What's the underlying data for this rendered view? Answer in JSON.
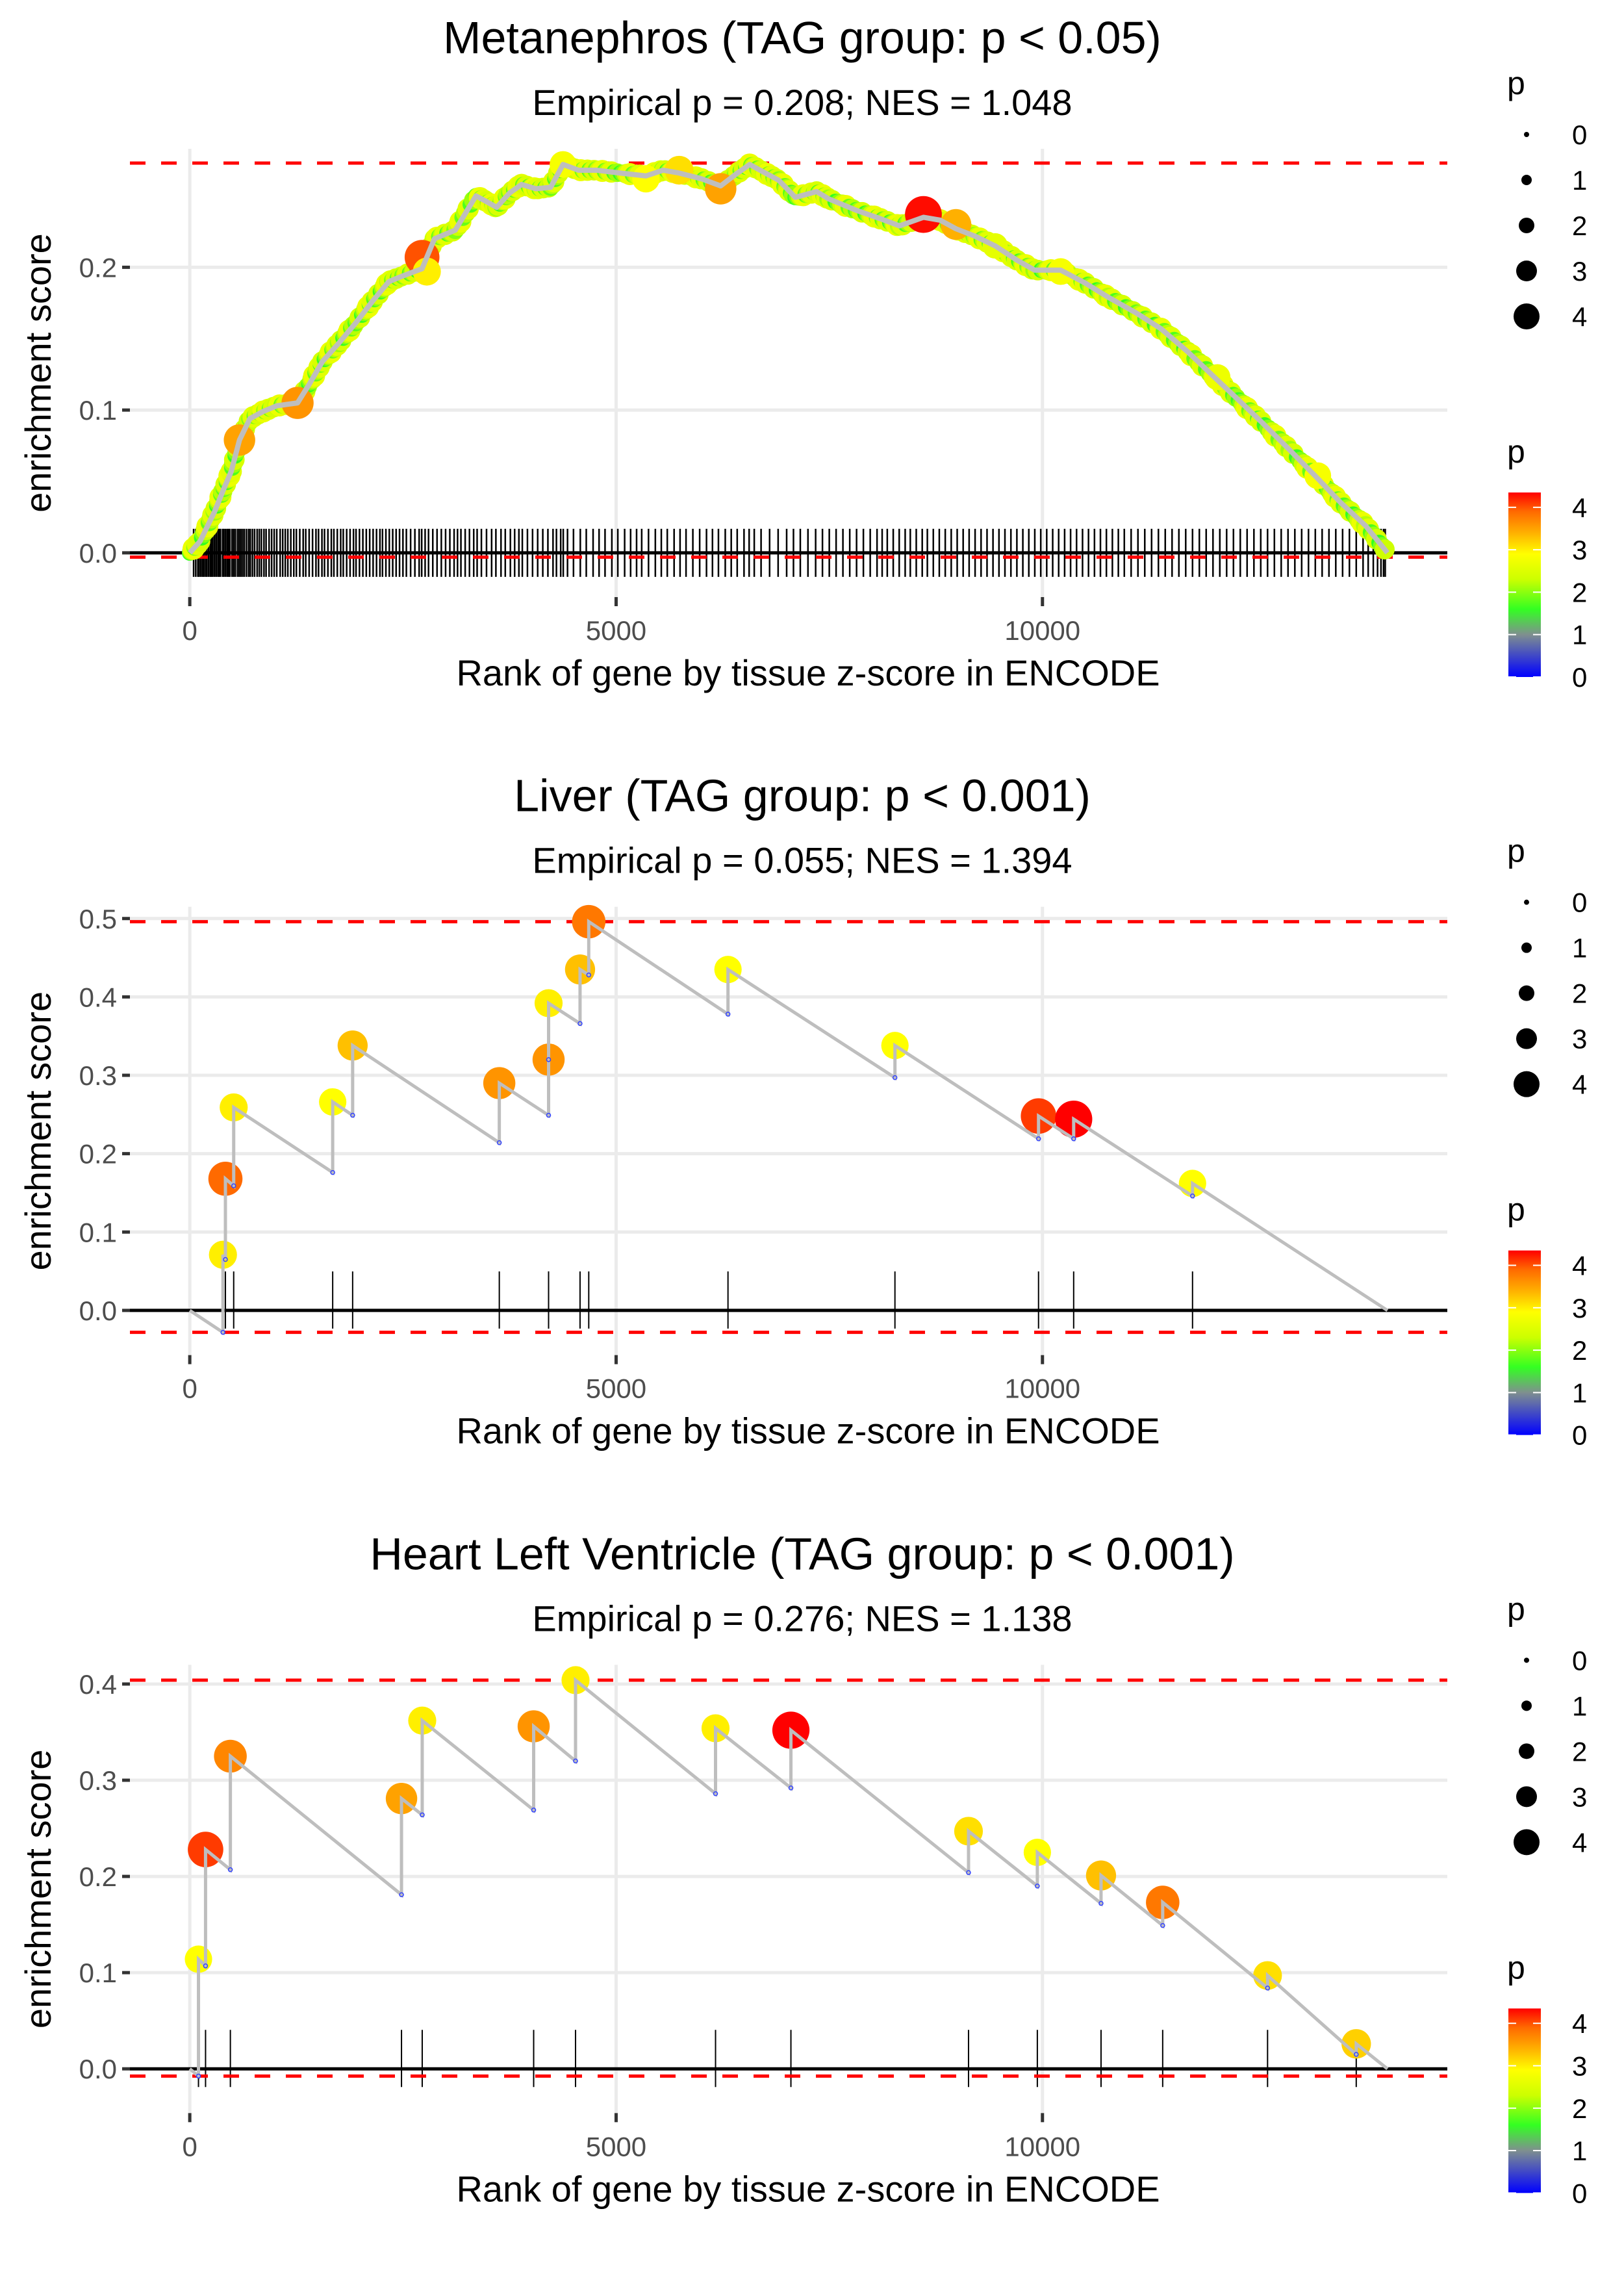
{
  "chart_data": [
    {
      "type": "line",
      "title": "Metanephros (TAG group: p < 0.05)",
      "subtitle": "Empirical p = 0.208; NES = 1.048",
      "xlabel": "Rank of gene by tissue z-score in ENCODE",
      "ylabel": "enrichment score",
      "xlim": [
        -702,
        14748
      ],
      "ylim": [
        -0.031,
        0.283
      ],
      "x_ticks": [
        0,
        5000,
        10000
      ],
      "x_tick_labels": [
        "0",
        "5000",
        "10000"
      ],
      "y_ticks": [
        0.0,
        0.1,
        0.2
      ],
      "y_tick_labels": [
        "0.0",
        "0.1",
        "0.2"
      ],
      "grid": true,
      "max_es_line": 0.273,
      "min_es_line": -0.003,
      "dense": true,
      "running_sum": [
        [
          0,
          0.0
        ],
        [
          120,
          0.008
        ],
        [
          292,
          0.029
        ],
        [
          400,
          0.045
        ],
        [
          486,
          0.057
        ],
        [
          583,
          0.079
        ],
        [
          705,
          0.094
        ],
        [
          860,
          0.099
        ],
        [
          1021,
          0.103
        ],
        [
          1264,
          0.105
        ],
        [
          1400,
          0.118
        ],
        [
          1556,
          0.134
        ],
        [
          1750,
          0.147
        ],
        [
          1946,
          0.161
        ],
        [
          2140,
          0.176
        ],
        [
          2335,
          0.19
        ],
        [
          2500,
          0.194
        ],
        [
          2724,
          0.199
        ],
        [
          2870,
          0.22
        ],
        [
          3113,
          0.226
        ],
        [
          3356,
          0.25
        ],
        [
          3480,
          0.246
        ],
        [
          3599,
          0.242
        ],
        [
          3750,
          0.252
        ],
        [
          3891,
          0.258
        ],
        [
          4060,
          0.255
        ],
        [
          4232,
          0.256
        ],
        [
          4377,
          0.272
        ],
        [
          4560,
          0.268
        ],
        [
          4767,
          0.268
        ],
        [
          5050,
          0.266
        ],
        [
          5350,
          0.264
        ],
        [
          5550,
          0.268
        ],
        [
          5739,
          0.266
        ],
        [
          6000,
          0.262
        ],
        [
          6226,
          0.257
        ],
        [
          6400,
          0.265
        ],
        [
          6566,
          0.272
        ],
        [
          6750,
          0.266
        ],
        [
          6907,
          0.261
        ],
        [
          7101,
          0.249
        ],
        [
          7352,
          0.253
        ],
        [
          7490,
          0.248
        ],
        [
          7813,
          0.24
        ],
        [
          8100,
          0.234
        ],
        [
          8323,
          0.229
        ],
        [
          8604,
          0.235
        ],
        [
          8800,
          0.233
        ],
        [
          8985,
          0.227
        ],
        [
          9200,
          0.222
        ],
        [
          9445,
          0.215
        ],
        [
          9700,
          0.205
        ],
        [
          9908,
          0.198
        ],
        [
          10214,
          0.198
        ],
        [
          10500,
          0.189
        ],
        [
          10772,
          0.179
        ],
        [
          11100,
          0.168
        ],
        [
          11389,
          0.157
        ],
        [
          11700,
          0.141
        ],
        [
          12052,
          0.121
        ],
        [
          12300,
          0.107
        ],
        [
          12563,
          0.092
        ],
        [
          12900,
          0.072
        ],
        [
          13229,
          0.052
        ],
        [
          13500,
          0.035
        ],
        [
          13789,
          0.019
        ],
        [
          14046,
          0.0
        ]
      ],
      "highlight_points": [
        {
          "x": 583,
          "y": 0.079,
          "p": 3.5
        },
        {
          "x": 1264,
          "y": 0.105,
          "p": 3.6
        },
        {
          "x": 2724,
          "y": 0.207,
          "p": 4.0
        },
        {
          "x": 2780,
          "y": 0.197,
          "p": 3.0
        },
        {
          "x": 4377,
          "y": 0.272,
          "p": 2.8
        },
        {
          "x": 5350,
          "y": 0.262,
          "p": 2.9
        },
        {
          "x": 5739,
          "y": 0.268,
          "p": 3.1
        },
        {
          "x": 6226,
          "y": 0.255,
          "p": 3.5
        },
        {
          "x": 8604,
          "y": 0.237,
          "p": 4.3
        },
        {
          "x": 8985,
          "y": 0.23,
          "p": 3.4
        },
        {
          "x": 9445,
          "y": 0.215,
          "p": 2.6
        },
        {
          "x": 10214,
          "y": 0.197,
          "p": 2.8
        },
        {
          "x": 12052,
          "y": 0.123,
          "p": 2.7
        },
        {
          "x": 13229,
          "y": 0.054,
          "p": 2.8
        }
      ],
      "hit_ranks": [
        45,
        70,
        95,
        110,
        130,
        150,
        165,
        185,
        200,
        220,
        240,
        255,
        270,
        290,
        310,
        330,
        345,
        360,
        385,
        400,
        420,
        440,
        455,
        470,
        495,
        515,
        535,
        560,
        580,
        600,
        620,
        640,
        665,
        690,
        710,
        735,
        760,
        790,
        815,
        840,
        870,
        895,
        930,
        960,
        990,
        1020,
        1060,
        1090,
        1120,
        1150,
        1185,
        1220,
        1250,
        1290,
        1330,
        1360,
        1400,
        1440,
        1480,
        1510,
        1550,
        1580,
        1620,
        1660,
        1690,
        1730,
        1770,
        1800,
        1840,
        1880,
        1920,
        1950,
        1990,
        2030,
        2070,
        2110,
        2150,
        2190,
        2230,
        2260,
        2300,
        2340,
        2380,
        2420,
        2460,
        2500,
        2540,
        2590,
        2640,
        2690,
        2720,
        2760,
        2800,
        2850,
        2900,
        2950,
        3000,
        3050,
        3100,
        3140,
        3180,
        3230,
        3280,
        3330,
        3370,
        3420,
        3480,
        3540,
        3590,
        3650,
        3700,
        3760,
        3810,
        3860,
        3900,
        3960,
        4020,
        4080,
        4140,
        4200,
        4260,
        4300,
        4350,
        4380,
        4430,
        4500,
        4580,
        4650,
        4730,
        4800,
        4870,
        4950,
        5020,
        5100,
        5170,
        5240,
        5300,
        5380,
        5460,
        5530,
        5600,
        5680,
        5750,
        5820,
        5900,
        5980,
        6060,
        6130,
        6200,
        6280,
        6350,
        6420,
        6500,
        6560,
        6620,
        6700,
        6800,
        6900,
        7000,
        7080,
        7160,
        7250,
        7340,
        7420,
        7500,
        7580,
        7660,
        7740,
        7820,
        7900,
        7980,
        8060,
        8120,
        8180,
        8250,
        8320,
        8390,
        8450,
        8520,
        8590,
        8650,
        8720,
        8790,
        8860,
        8930,
        9000,
        9070,
        9140,
        9210,
        9280,
        9350,
        9420,
        9490,
        9560,
        9630,
        9700,
        9770,
        9840,
        9910,
        9980,
        10050,
        10120,
        10190,
        10260,
        10330,
        10400,
        10470,
        10540,
        10610,
        10680,
        10750,
        10820,
        10890,
        10960,
        11040,
        11120,
        11200,
        11280,
        11360,
        11440,
        11520,
        11600,
        11680,
        11760,
        11840,
        11920,
        12000,
        12080,
        12160,
        12240,
        12320,
        12400,
        12480,
        12560,
        12640,
        12720,
        12800,
        12880,
        12960,
        13040,
        13120,
        13200,
        13280,
        13360,
        13440,
        13520,
        13600,
        13680,
        13760,
        13820,
        13880,
        13930,
        13970,
        14000,
        14020
      ]
    },
    {
      "type": "line",
      "title": "Liver (TAG group: p < 0.001)",
      "subtitle": "Empirical p = 0.055; NES = 1.394",
      "xlabel": "Rank of gene by tissue z-score in ENCODE",
      "ylabel": "enrichment score",
      "xlim": [
        -702,
        14748
      ],
      "ylim": [
        -0.057,
        0.515
      ],
      "x_ticks": [
        0,
        5000,
        10000
      ],
      "x_tick_labels": [
        "0",
        "5000",
        "10000"
      ],
      "y_ticks": [
        0.0,
        0.1,
        0.2,
        0.3,
        0.4,
        0.5
      ],
      "y_tick_labels": [
        "0.0",
        "0.1",
        "0.2",
        "0.3",
        "0.4",
        "0.5"
      ],
      "grid": true,
      "max_es_line": 0.496,
      "min_es_line": -0.028,
      "dense": false,
      "hits": [
        {
          "x": 389,
          "drop": -0.028,
          "y": 0.071,
          "p": 3.0
        },
        {
          "x": 418,
          "drop": 0.065,
          "y": 0.168,
          "p": 3.9
        },
        {
          "x": 515,
          "drop": 0.159,
          "y": 0.259,
          "p": 3.0
        },
        {
          "x": 1676,
          "drop": 0.176,
          "y": 0.266,
          "p": 2.9
        },
        {
          "x": 1910,
          "drop": 0.249,
          "y": 0.338,
          "p": 3.3
        },
        {
          "x": 3630,
          "drop": 0.214,
          "y": 0.29,
          "p": 3.6
        },
        {
          "x": 4208,
          "drop": 0.249,
          "y": 0.32,
          "p": 3.6
        },
        {
          "x": 4208,
          "drop": 0.32,
          "y": 0.392,
          "p": 3.0
        },
        {
          "x": 4577,
          "drop": 0.366,
          "y": 0.435,
          "p": 3.3
        },
        {
          "x": 4679,
          "drop": 0.428,
          "y": 0.496,
          "p": 3.8
        },
        {
          "x": 6312,
          "drop": 0.378,
          "y": 0.435,
          "p": 2.9
        },
        {
          "x": 8270,
          "drop": 0.297,
          "y": 0.338,
          "p": 2.9
        },
        {
          "x": 9954,
          "drop": 0.219,
          "y": 0.248,
          "p": 4.1
        },
        {
          "x": 10366,
          "drop": 0.219,
          "y": 0.244,
          "p": 4.35
        },
        {
          "x": 11760,
          "drop": 0.146,
          "y": 0.162,
          "p": 2.9
        }
      ],
      "end": [
        14046,
        0.0
      ]
    },
    {
      "type": "line",
      "title": "Heart Left Ventricle (TAG group: p < 0.001)",
      "subtitle": "Empirical p = 0.276; NES = 1.138",
      "xlabel": "Rank of gene by tissue z-score in ENCODE",
      "ylabel": "enrichment score",
      "xlim": [
        -702,
        14748
      ],
      "ylim": [
        -0.046,
        0.42
      ],
      "x_ticks": [
        0,
        5000,
        10000
      ],
      "x_tick_labels": [
        "0",
        "5000",
        "10000"
      ],
      "y_ticks": [
        0.0,
        0.1,
        0.2,
        0.3,
        0.4
      ],
      "y_tick_labels": [
        "0.0",
        "0.1",
        "0.2",
        "0.3",
        "0.4"
      ],
      "grid": true,
      "max_es_line": 0.404,
      "min_es_line": -0.0075,
      "dense": false,
      "hits": [
        {
          "x": 102,
          "drop": -0.0075,
          "y": 0.114,
          "p": 2.9
        },
        {
          "x": 185,
          "drop": 0.107,
          "y": 0.228,
          "p": 4.1
        },
        {
          "x": 476,
          "drop": 0.207,
          "y": 0.325,
          "p": 3.7
        },
        {
          "x": 2483,
          "drop": 0.181,
          "y": 0.281,
          "p": 3.5
        },
        {
          "x": 2726,
          "drop": 0.264,
          "y": 0.362,
          "p": 3.0
        },
        {
          "x": 4033,
          "drop": 0.269,
          "y": 0.356,
          "p": 3.6
        },
        {
          "x": 4524,
          "drop": 0.32,
          "y": 0.404,
          "p": 3.0
        },
        {
          "x": 6166,
          "drop": 0.286,
          "y": 0.354,
          "p": 3.0
        },
        {
          "x": 7050,
          "drop": 0.292,
          "y": 0.352,
          "p": 4.35
        },
        {
          "x": 9133,
          "drop": 0.204,
          "y": 0.247,
          "p": 3.1
        },
        {
          "x": 9940,
          "drop": 0.19,
          "y": 0.225,
          "p": 2.9
        },
        {
          "x": 10687,
          "drop": 0.172,
          "y": 0.201,
          "p": 3.3
        },
        {
          "x": 11410,
          "drop": 0.149,
          "y": 0.173,
          "p": 3.8
        },
        {
          "x": 12640,
          "drop": 0.084,
          "y": 0.097,
          "p": 3.1
        },
        {
          "x": 13680,
          "drop": 0.015,
          "y": 0.026,
          "p": 3.2
        }
      ],
      "end": [
        14046,
        0.0
      ]
    }
  ],
  "legend": {
    "size_title": "p",
    "size_labels": [
      "0",
      "1",
      "2",
      "3",
      "4"
    ],
    "color_title": "p",
    "color_labels": [
      "0",
      "1",
      "2",
      "3",
      "4"
    ],
    "color_range": [
      0,
      4.35
    ],
    "color_stops": [
      {
        "v": 0.0,
        "c": "#0000ff"
      },
      {
        "v": 1.0,
        "c": "#7f8f8f"
      },
      {
        "v": 1.6,
        "c": "#33ff22"
      },
      {
        "v": 2.3,
        "c": "#ccff00"
      },
      {
        "v": 2.9,
        "c": "#ffff00"
      },
      {
        "v": 3.4,
        "c": "#ffb000"
      },
      {
        "v": 3.9,
        "c": "#ff6a00"
      },
      {
        "v": 4.35,
        "c": "#ff0000"
      }
    ]
  },
  "colors": {
    "curve": "#bebebe",
    "max_line": "#ff0000",
    "zero_line": "#000000",
    "grid": "#ebebeb",
    "rug": "#000000"
  }
}
